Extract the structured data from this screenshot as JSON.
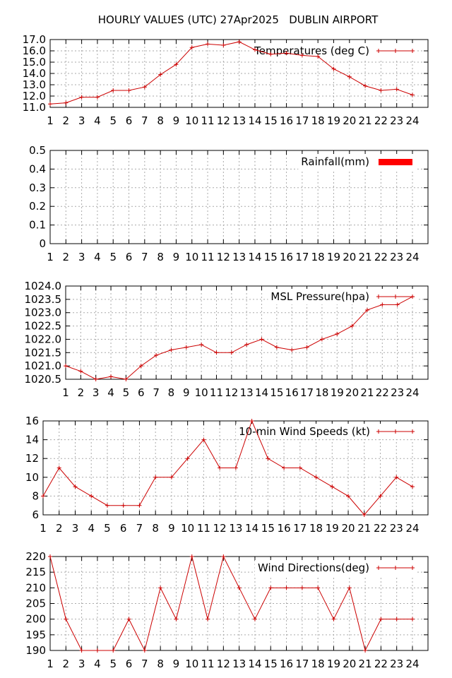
{
  "title": "HOURLY VALUES (UTC) 27Apr2025   DUBLIN AIRPORT",
  "colors": {
    "series": "#cc0000",
    "rain": "#ff0000",
    "grid": "#aaaaaa",
    "axis": "#000000"
  },
  "chart_data": [
    {
      "type": "line",
      "legend": "Temperatures (deg C)",
      "x": [
        1,
        2,
        3,
        4,
        5,
        6,
        7,
        8,
        9,
        10,
        11,
        12,
        13,
        14,
        15,
        16,
        17,
        18,
        19,
        20,
        21,
        22,
        23,
        24
      ],
      "values": [
        11.3,
        11.4,
        11.9,
        11.9,
        12.5,
        12.5,
        12.8,
        13.9,
        14.8,
        16.3,
        16.6,
        16.5,
        16.8,
        16.1,
        15.7,
        15.8,
        15.6,
        15.5,
        14.4,
        13.7,
        12.9,
        12.5,
        12.6,
        12.1
      ],
      "ylim": [
        11.0,
        17.0
      ],
      "yticks": [
        "11.0",
        "12.0",
        "13.0",
        "14.0",
        "15.0",
        "16.0",
        "17.0"
      ],
      "xticks": [
        "1",
        "2",
        "3",
        "4",
        "5",
        "6",
        "7",
        "8",
        "9",
        "10",
        "11",
        "12",
        "13",
        "14",
        "15",
        "16",
        "17",
        "18",
        "19",
        "20",
        "21",
        "22",
        "23",
        "24"
      ],
      "grid": true,
      "legend_position": "top-right"
    },
    {
      "type": "bar",
      "legend": "Rainfall(mm)",
      "x": [
        1,
        2,
        3,
        4,
        5,
        6,
        7,
        8,
        9,
        10,
        11,
        12,
        13,
        14,
        15,
        16,
        17,
        18,
        19,
        20,
        21,
        22,
        23,
        24
      ],
      "values": [
        0,
        0,
        0,
        0,
        0,
        0,
        0,
        0,
        0,
        0,
        0,
        0,
        0,
        0,
        0,
        0,
        0,
        0,
        0,
        0,
        0,
        0,
        0,
        0
      ],
      "ylim": [
        0,
        0.5
      ],
      "yticks": [
        "0",
        "0.1",
        "0.2",
        "0.3",
        "0.4",
        "0.5"
      ],
      "xticks": [
        "1",
        "2",
        "3",
        "4",
        "5",
        "6",
        "7",
        "8",
        "9",
        "10",
        "11",
        "12",
        "13",
        "14",
        "15",
        "16",
        "17",
        "18",
        "19",
        "20",
        "21",
        "22",
        "23",
        "24"
      ],
      "grid": true,
      "legend_position": "top-right"
    },
    {
      "type": "line",
      "legend": "MSL Pressure(hpa)",
      "x": [
        1,
        2,
        3,
        4,
        5,
        6,
        7,
        8,
        9,
        10,
        11,
        12,
        13,
        14,
        15,
        16,
        17,
        18,
        19,
        20,
        21,
        22,
        23,
        24
      ],
      "values": [
        1021.0,
        1020.8,
        1020.5,
        1020.6,
        1020.5,
        1021.0,
        1021.4,
        1021.6,
        1021.7,
        1021.8,
        1021.5,
        1021.5,
        1021.8,
        1022.0,
        1021.7,
        1021.6,
        1021.7,
        1022.0,
        1022.2,
        1022.5,
        1023.1,
        1023.3,
        1023.3,
        1023.6
      ],
      "ylim": [
        1020.5,
        1024.0
      ],
      "yticks": [
        "1020.5",
        "1021.0",
        "1021.5",
        "1022.0",
        "1022.5",
        "1023.0",
        "1023.5",
        "1024.0"
      ],
      "xticks": [
        "1",
        "2",
        "3",
        "4",
        "5",
        "6",
        "7",
        "8",
        "9",
        "10",
        "11",
        "12",
        "13",
        "14",
        "15",
        "16",
        "17",
        "18",
        "19",
        "20",
        "21",
        "22",
        "23",
        "24"
      ],
      "grid": true,
      "legend_position": "top-right"
    },
    {
      "type": "line",
      "legend": "10-min Wind Speeds (kt)",
      "x": [
        1,
        2,
        3,
        4,
        5,
        6,
        7,
        8,
        9,
        10,
        11,
        12,
        13,
        14,
        15,
        16,
        17,
        18,
        19,
        20,
        21,
        22,
        23,
        24
      ],
      "values": [
        8,
        11,
        9,
        8,
        7,
        7,
        7,
        10,
        10,
        12,
        14,
        11,
        11,
        16,
        12,
        11,
        11,
        10,
        9,
        8,
        6,
        8,
        10,
        9
      ],
      "ylim": [
        6,
        16
      ],
      "yticks": [
        "6",
        "8",
        "10",
        "12",
        "14",
        "16"
      ],
      "xticks": [
        "1",
        "2",
        "3",
        "4",
        "5",
        "6",
        "7",
        "8",
        "9",
        "10",
        "11",
        "12",
        "13",
        "14",
        "15",
        "16",
        "17",
        "18",
        "19",
        "20",
        "21",
        "22",
        "23",
        "24"
      ],
      "grid": true,
      "legend_position": "top-right"
    },
    {
      "type": "line",
      "legend": "Wind Directions(deg)",
      "x": [
        1,
        2,
        3,
        4,
        5,
        6,
        7,
        8,
        9,
        10,
        11,
        12,
        13,
        14,
        15,
        16,
        17,
        18,
        19,
        20,
        21,
        22,
        23,
        24
      ],
      "values": [
        220,
        200,
        190,
        190,
        190,
        200,
        190,
        210,
        200,
        220,
        200,
        220,
        210,
        200,
        210,
        210,
        210,
        210,
        200,
        210,
        190,
        200,
        200,
        200
      ],
      "ylim": [
        190,
        220
      ],
      "yticks": [
        "190",
        "195",
        "200",
        "205",
        "210",
        "215",
        "220"
      ],
      "xticks": [
        "1",
        "2",
        "3",
        "4",
        "5",
        "6",
        "7",
        "8",
        "9",
        "10",
        "11",
        "12",
        "13",
        "14",
        "15",
        "16",
        "17",
        "18",
        "19",
        "20",
        "21",
        "22",
        "23",
        "24"
      ],
      "grid": true,
      "legend_position": "top-right"
    }
  ]
}
